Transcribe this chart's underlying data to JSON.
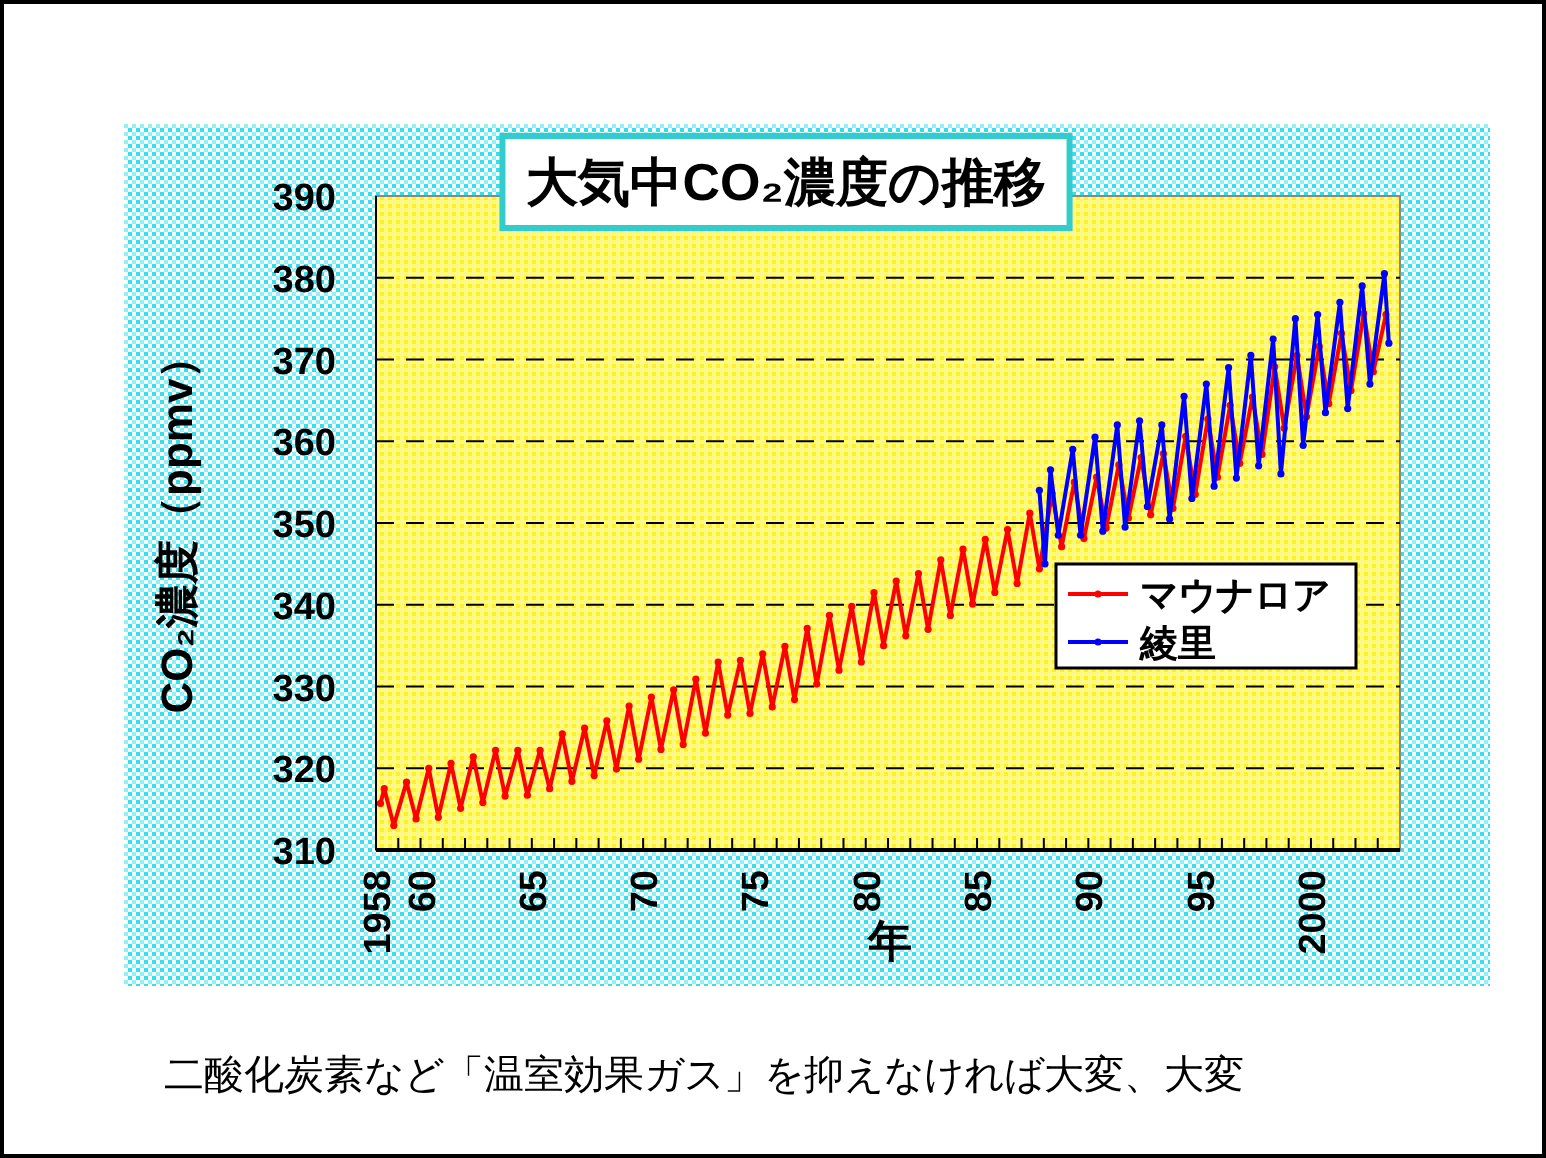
{
  "chart_data": {
    "type": "line",
    "title": "大気中CO₂濃度の推移",
    "xlabel": "年",
    "ylabel": "CO₂濃度（ppmv）",
    "annotations": [
      "二酸化炭素など「温室効果ガス」を抑えなければ大変、大変"
    ],
    "xlim": [
      1958,
      2004
    ],
    "ylim": [
      310,
      390
    ],
    "yticks": [
      310,
      320,
      330,
      340,
      350,
      360,
      370,
      380,
      390
    ],
    "xticks": [
      {
        "value": 1958,
        "label": "1958"
      },
      {
        "value": 1959,
        "label": null
      },
      {
        "value": 1960,
        "label": "60"
      },
      {
        "value": 1961,
        "label": null
      },
      {
        "value": 1962,
        "label": null
      },
      {
        "value": 1963,
        "label": null
      },
      {
        "value": 1964,
        "label": null
      },
      {
        "value": 1965,
        "label": "65"
      },
      {
        "value": 1966,
        "label": null
      },
      {
        "value": 1967,
        "label": null
      },
      {
        "value": 1968,
        "label": null
      },
      {
        "value": 1969,
        "label": null
      },
      {
        "value": 1970,
        "label": "70"
      },
      {
        "value": 1971,
        "label": null
      },
      {
        "value": 1972,
        "label": null
      },
      {
        "value": 1973,
        "label": null
      },
      {
        "value": 1974,
        "label": null
      },
      {
        "value": 1975,
        "label": "75"
      },
      {
        "value": 1976,
        "label": null
      },
      {
        "value": 1977,
        "label": null
      },
      {
        "value": 1978,
        "label": null
      },
      {
        "value": 1979,
        "label": null
      },
      {
        "value": 1980,
        "label": "80"
      },
      {
        "value": 1981,
        "label": null
      },
      {
        "value": 1982,
        "label": null
      },
      {
        "value": 1983,
        "label": null
      },
      {
        "value": 1984,
        "label": null
      },
      {
        "value": 1985,
        "label": "85"
      },
      {
        "value": 1986,
        "label": null
      },
      {
        "value": 1987,
        "label": null
      },
      {
        "value": 1988,
        "label": null
      },
      {
        "value": 1989,
        "label": null
      },
      {
        "value": 1990,
        "label": "90"
      },
      {
        "value": 1991,
        "label": null
      },
      {
        "value": 1992,
        "label": null
      },
      {
        "value": 1993,
        "label": null
      },
      {
        "value": 1994,
        "label": null
      },
      {
        "value": 1995,
        "label": "95"
      },
      {
        "value": 1996,
        "label": null
      },
      {
        "value": 1997,
        "label": null
      },
      {
        "value": 1998,
        "label": null
      },
      {
        "value": 1999,
        "label": null
      },
      {
        "value": 2000,
        "label": "2000"
      },
      {
        "value": 2001,
        "label": null
      },
      {
        "value": 2002,
        "label": null
      },
      {
        "value": 2003,
        "label": null
      }
    ],
    "grid": "y",
    "legend": "right",
    "marker": "circle",
    "series": [
      {
        "name": "マウナロア",
        "color": "#ff0000",
        "x": [
          1958.2,
          1958.37,
          1958.8,
          1959.37,
          1959.8,
          1960.37,
          1960.8,
          1961.37,
          1961.8,
          1962.37,
          1962.8,
          1963.37,
          1963.8,
          1964.37,
          1964.8,
          1965.37,
          1965.8,
          1966.37,
          1966.8,
          1967.37,
          1967.8,
          1968.37,
          1968.8,
          1969.37,
          1969.8,
          1970.37,
          1970.8,
          1971.37,
          1971.8,
          1972.37,
          1972.8,
          1973.37,
          1973.8,
          1974.37,
          1974.8,
          1975.37,
          1975.8,
          1976.37,
          1976.8,
          1977.37,
          1977.8,
          1978.37,
          1978.8,
          1979.37,
          1979.8,
          1980.37,
          1980.8,
          1981.37,
          1981.8,
          1982.37,
          1982.8,
          1983.37,
          1983.8,
          1984.37,
          1984.8,
          1985.37,
          1985.8,
          1986.37,
          1986.8,
          1987.37,
          1987.8,
          1988.37,
          1988.8,
          1989.37,
          1989.8,
          1990.37,
          1990.8,
          1991.37,
          1991.8,
          1992.37,
          1992.8,
          1993.37,
          1993.8,
          1994.37,
          1994.8,
          1995.37,
          1995.8,
          1996.37,
          1996.8,
          1997.37,
          1997.8,
          1998.37,
          1998.8,
          1999.37,
          1999.8,
          2000.37,
          2000.8,
          2001.37,
          2001.8,
          2002.37,
          2002.8,
          2003.37
        ],
        "values": [
          315.7,
          317.5,
          313.0,
          318.3,
          313.8,
          320.0,
          314.0,
          320.6,
          315.1,
          321.4,
          315.8,
          322.2,
          316.6,
          322.2,
          316.7,
          322.2,
          317.5,
          324.2,
          318.4,
          324.9,
          319.1,
          325.8,
          319.9,
          327.6,
          321.1,
          328.7,
          322.3,
          329.6,
          322.9,
          330.9,
          324.3,
          333.0,
          326.5,
          333.2,
          326.7,
          334.0,
          327.5,
          334.9,
          328.4,
          337.1,
          330.3,
          338.7,
          332.0,
          339.8,
          333.0,
          341.5,
          335.0,
          342.9,
          336.2,
          343.8,
          337.0,
          345.5,
          338.7,
          346.8,
          340.1,
          348.0,
          341.5,
          349.2,
          342.6,
          351.2,
          344.4,
          353.6,
          347.1,
          355.0,
          348.1,
          355.6,
          349.4,
          357.1,
          350.6,
          358.0,
          351.0,
          358.5,
          351.8,
          360.6,
          353.5,
          362.7,
          355.6,
          364.4,
          357.3,
          365.4,
          358.4,
          369.1,
          361.6,
          370.5,
          363.0,
          371.6,
          364.6,
          373.2,
          366.2,
          375.6,
          368.5,
          375.5
        ]
      },
      {
        "name": "綾里",
        "color": "#0000ff",
        "x": [
          1987.8,
          1988.05,
          1988.3,
          1988.65,
          1989.3,
          1989.65,
          1990.3,
          1990.65,
          1991.3,
          1991.65,
          1992.3,
          1992.65,
          1993.3,
          1993.65,
          1994.3,
          1994.65,
          1995.3,
          1995.65,
          1996.3,
          1996.65,
          1997.3,
          1997.65,
          1998.3,
          1998.65,
          1999.3,
          1999.65,
          2000.3,
          2000.65,
          2001.3,
          2001.65,
          2002.3,
          2002.65,
          2003.3,
          2003.5
        ],
        "values": [
          354.0,
          345.0,
          356.5,
          348.5,
          359.0,
          348.5,
          360.5,
          349.0,
          362.0,
          349.5,
          362.5,
          352.0,
          362.0,
          350.5,
          365.5,
          353.0,
          367.0,
          354.5,
          369.0,
          355.5,
          370.5,
          357.0,
          372.5,
          356.0,
          375.0,
          359.5,
          375.5,
          363.5,
          377.0,
          364.0,
          379.0,
          367.0,
          380.5,
          372.0
        ]
      }
    ]
  }
}
